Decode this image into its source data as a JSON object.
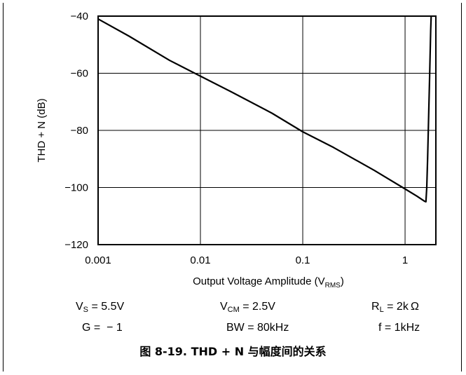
{
  "chart_data": {
    "type": "line",
    "title": "",
    "xlabel": "Output Voltage Amplitude",
    "xlabel_sub": "RMS",
    "xlabel_prefix": "(V",
    "xlabel_suffix": ")",
    "ylabel": "THD + N (dB)",
    "xscale": "log",
    "xlim": [
      0.001,
      2
    ],
    "ylim": [
      -120,
      -40
    ],
    "grid": true,
    "x_ticks": [
      0.001,
      0.01,
      0.1,
      1
    ],
    "x_tick_labels": [
      "0.001",
      "0.01",
      "0.1",
      "1"
    ],
    "y_ticks": [
      -40,
      -60,
      -80,
      -100,
      -120
    ],
    "y_tick_labels": [
      "−40",
      "−60",
      "−80",
      "−100",
      "−120"
    ],
    "series": [
      {
        "x": [
          0.001,
          0.002,
          0.005,
          0.01,
          0.02,
          0.05,
          0.1,
          0.2,
          0.5,
          1.0,
          1.3,
          1.55,
          1.6,
          1.63,
          1.66,
          1.7,
          1.74,
          1.78,
          1.8
        ],
        "y": [
          -41,
          -47,
          -55.5,
          -61,
          -66.5,
          -74,
          -80.5,
          -86,
          -94,
          -100.5,
          -103,
          -104.8,
          -105,
          -100,
          -90,
          -75,
          -60,
          -45,
          -40
        ]
      }
    ]
  },
  "conditions": {
    "vs_main": "V",
    "vs_sub": "S",
    "vs_val": " = 5.5V",
    "vcm_main": "V",
    "vcm_sub": "CM",
    "vcm_val": " = 2.5V",
    "rl_main": "R",
    "rl_sub": "L",
    "rl_val": " = 2k Ω",
    "g": "G =  − 1",
    "bw": "BW = 80kHz",
    "f": "f = 1kHz"
  },
  "caption": "图 8-19. THD + N 与幅度间的关系"
}
